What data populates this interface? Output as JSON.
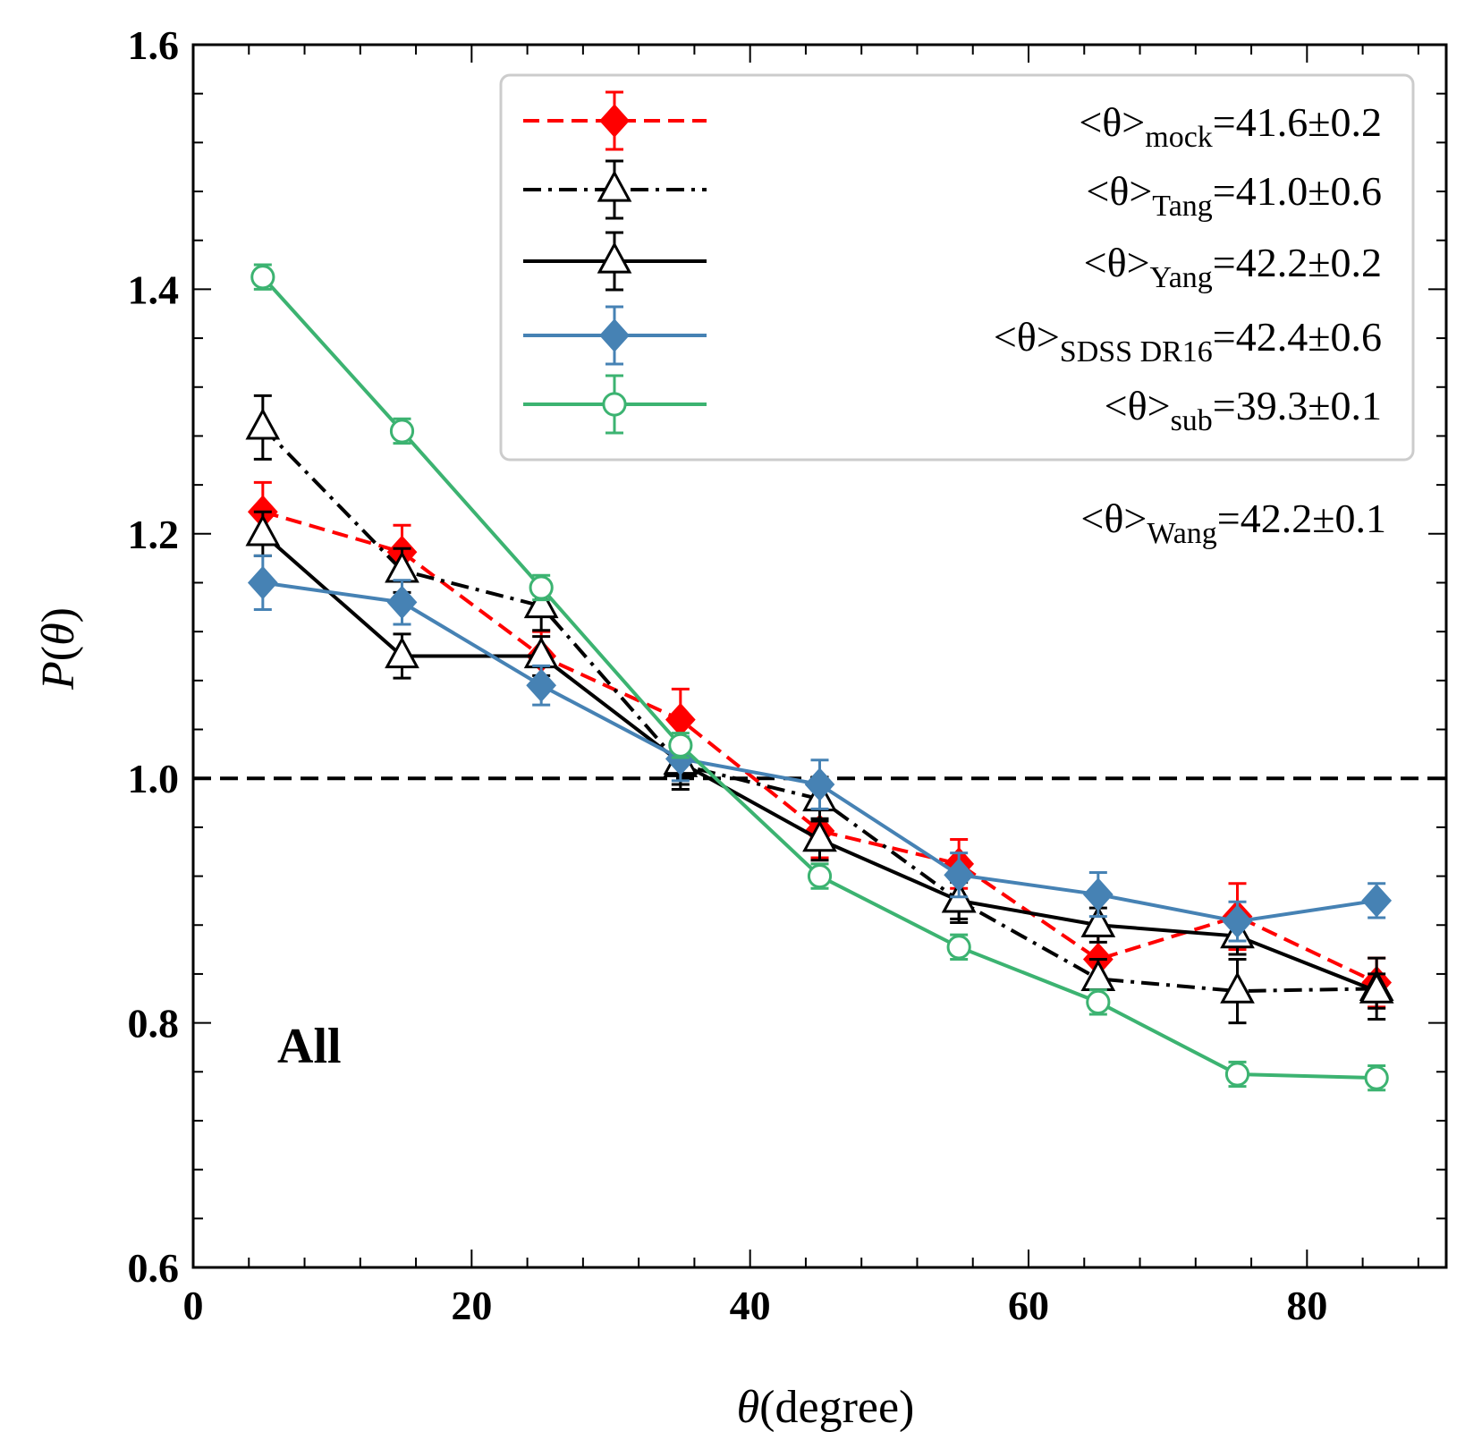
{
  "chart_data": {
    "type": "line",
    "xlabel_symbol": "θ",
    "xlabel_text": "(degree)",
    "ylabel_symbol": "P",
    "ylabel_open": "(",
    "ylabel_arg": "θ",
    "ylabel_close": ")",
    "xlim": [
      0,
      90
    ],
    "ylim": [
      0.6,
      1.6
    ],
    "x_ticks": [
      0,
      20,
      40,
      60,
      80
    ],
    "x_tick_labels": [
      "0",
      "20",
      "40",
      "60",
      "80"
    ],
    "y_ticks": [
      0.6,
      0.8,
      1.0,
      1.2,
      1.4,
      1.6
    ],
    "y_tick_labels": [
      "0.6",
      "0.8",
      "1.0",
      "1.2",
      "1.4",
      "1.6"
    ],
    "reference_line_y": 1.0,
    "annotation": "All",
    "grid": false,
    "legend_position": "top-right",
    "x": [
      5,
      15,
      25,
      35,
      45,
      55,
      65,
      75,
      85
    ],
    "series": [
      {
        "key": "mock",
        "color": "#ff0000",
        "style": "dashed",
        "marker": "diamond",
        "y": [
          1.218,
          1.185,
          1.1,
          1.048,
          0.957,
          0.93,
          0.852,
          0.887,
          0.833
        ],
        "err": [
          0.024,
          0.022,
          0.02,
          0.025,
          0.022,
          0.02,
          0.022,
          0.027,
          0.02
        ]
      },
      {
        "key": "Tang",
        "color": "#000000",
        "style": "dashdot",
        "marker": "triangle-open",
        "y": [
          1.287,
          1.17,
          1.141,
          1.011,
          0.983,
          0.9,
          0.836,
          0.826,
          0.828
        ],
        "err": [
          0.026,
          0.018,
          0.02,
          0.02,
          0.018,
          0.018,
          0.016,
          0.026,
          0.025
        ]
      },
      {
        "key": "Yang",
        "color": "#000000",
        "style": "solid",
        "marker": "triangle-open",
        "y": [
          1.2,
          1.1,
          1.1,
          1.013,
          0.95,
          0.9,
          0.88,
          0.871,
          0.826
        ],
        "err": [
          0.018,
          0.018,
          0.016,
          0.018,
          0.017,
          0.015,
          0.014,
          0.015,
          0.014
        ]
      },
      {
        "key": "SDSS DR16",
        "color": "#4682b4",
        "style": "solid",
        "marker": "diamond",
        "y": [
          1.16,
          1.144,
          1.076,
          1.016,
          0.995,
          0.921,
          0.905,
          0.883,
          0.9
        ],
        "err": [
          0.022,
          0.018,
          0.016,
          0.018,
          0.02,
          0.018,
          0.018,
          0.016,
          0.014
        ]
      },
      {
        "key": "sub",
        "color": "#3cb371",
        "style": "solid",
        "marker": "circle-open",
        "y": [
          1.41,
          1.284,
          1.156,
          1.027,
          0.92,
          0.862,
          0.817,
          0.758,
          0.755
        ],
        "err": [
          0.01,
          0.01,
          0.01,
          0.01,
          0.01,
          0.01,
          0.01,
          0.01,
          0.01
        ]
      }
    ],
    "legend": [
      {
        "label": "<θ>",
        "subscript": "mock",
        "value": "=41.6±0.2"
      },
      {
        "label": "<θ>",
        "subscript": "Tang",
        "value": "=41.0±0.6"
      },
      {
        "label": "<θ>",
        "subscript": "Yang",
        "value": "=42.2±0.2"
      },
      {
        "label": "<θ>",
        "subscript": "SDSS DR16",
        "value": "=42.4±0.6"
      },
      {
        "label": "<θ>",
        "subscript": "sub",
        "value": "=39.3±0.1"
      }
    ],
    "extra_annotation": {
      "label": "<θ>",
      "subscript": "Wang",
      "value": "=42.2±0.1"
    }
  }
}
